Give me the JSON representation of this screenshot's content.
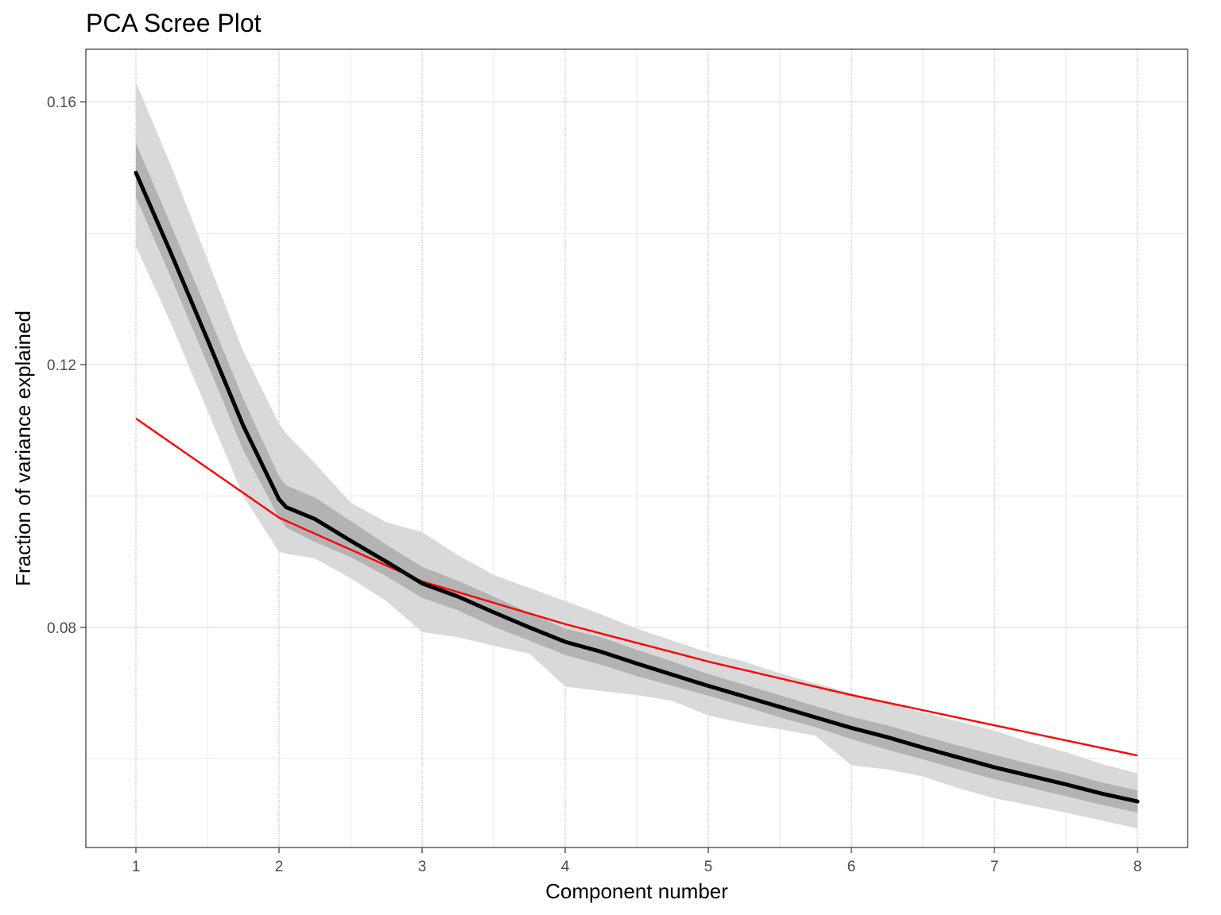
{
  "chart_data": {
    "type": "line",
    "title": "PCA Scree Plot",
    "xlabel": "Component number",
    "ylabel": "Fraction of variance explained",
    "xlim": [
      0.65,
      8.35
    ],
    "ylim": [
      0.0465,
      0.168
    ],
    "x_ticks": [
      1,
      2,
      3,
      4,
      5,
      6,
      7,
      8
    ],
    "x_tick_labels": [
      "1",
      "2",
      "3",
      "4",
      "5",
      "6",
      "7",
      "8"
    ],
    "y_ticks": [
      0.08,
      0.12,
      0.16
    ],
    "y_tick_labels": [
      "0.08",
      "0.12",
      "0.16"
    ],
    "y_minor_ticks": [
      0.06,
      0.1,
      0.14
    ],
    "x_minor_ticks": [
      1.5,
      2.5,
      3.5,
      4.5,
      5.5,
      6.5,
      7.5
    ],
    "grid": true,
    "colors": {
      "mean_line": "#000000",
      "reference_line": "#ff0000",
      "outer_band": "#d9d9d9",
      "inner_band": "#b3b3b3"
    },
    "series": [
      {
        "x": [
          1,
          1.25,
          1.5,
          1.75,
          2,
          2.05,
          2.25,
          2.5,
          2.75,
          3,
          3.25,
          3.5,
          3.75,
          4,
          4.25,
          4.5,
          4.75,
          5,
          5.25,
          5.5,
          5.75,
          6,
          6.25,
          6.5,
          6.75,
          7,
          7.25,
          7.5,
          7.75,
          8
        ],
        "values": [
          0.1492,
          0.1367,
          0.1238,
          0.1107,
          0.0995,
          0.0983,
          0.0965,
          0.0932,
          0.09,
          0.0867,
          0.0847,
          0.0823,
          0.08,
          0.0778,
          0.0763,
          0.0745,
          0.0728,
          0.0711,
          0.0695,
          0.0679,
          0.0663,
          0.0647,
          0.0633,
          0.0617,
          0.0602,
          0.0587,
          0.0574,
          0.0561,
          0.0547,
          0.0535
        ],
        "ci_inner_low": [
          0.1455,
          0.133,
          0.1201,
          0.107,
          0.0967,
          0.0952,
          0.093,
          0.0907,
          0.0878,
          0.0845,
          0.0826,
          0.0801,
          0.078,
          0.0758,
          0.0743,
          0.0726,
          0.0711,
          0.0696,
          0.068,
          0.0663,
          0.0648,
          0.063,
          0.0614,
          0.0599,
          0.0584,
          0.0569,
          0.0556,
          0.0543,
          0.053,
          0.0518
        ],
        "ci_inner_high": [
          0.1537,
          0.141,
          0.128,
          0.1148,
          0.103,
          0.1016,
          0.0998,
          0.0962,
          0.0926,
          0.0892,
          0.0871,
          0.0847,
          0.0822,
          0.0798,
          0.0785,
          0.0766,
          0.0748,
          0.0729,
          0.0713,
          0.0697,
          0.068,
          0.0664,
          0.0651,
          0.0635,
          0.062,
          0.0606,
          0.0592,
          0.0579,
          0.0564,
          0.0552
        ],
        "ci_outer_low": [
          0.138,
          0.126,
          0.113,
          0.1,
          0.0915,
          0.0912,
          0.0905,
          0.0875,
          0.084,
          0.0793,
          0.0785,
          0.0772,
          0.076,
          0.071,
          0.0703,
          0.0697,
          0.0688,
          0.0666,
          0.0654,
          0.0645,
          0.0635,
          0.059,
          0.0584,
          0.0573,
          0.0555,
          0.054,
          0.0529,
          0.0518,
          0.0506,
          0.0494
        ],
        "ci_outer_high": [
          0.163,
          0.15,
          0.136,
          0.122,
          0.111,
          0.1095,
          0.105,
          0.099,
          0.096,
          0.0945,
          0.091,
          0.088,
          0.086,
          0.084,
          0.082,
          0.0798,
          0.078,
          0.0762,
          0.0748,
          0.073,
          0.0715,
          0.07,
          0.0685,
          0.067,
          0.0657,
          0.0643,
          0.0625,
          0.061,
          0.0592,
          0.0578
        ]
      },
      {
        "x": [
          1,
          2,
          3,
          4,
          5,
          6,
          7,
          8
        ],
        "values": [
          0.1118,
          0.0967,
          0.087,
          0.0805,
          0.0748,
          0.0697,
          0.0651,
          0.0605
        ]
      }
    ]
  }
}
